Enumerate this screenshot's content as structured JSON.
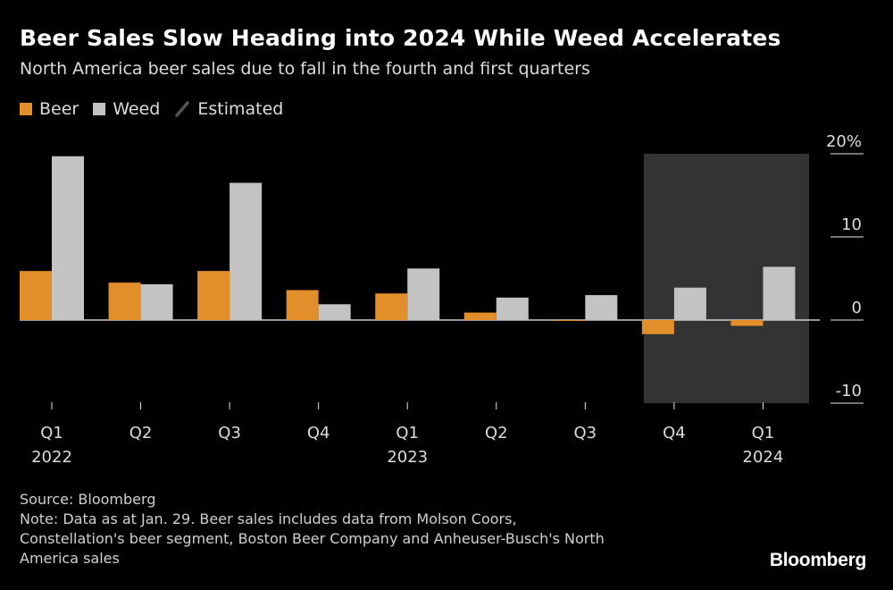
{
  "title": "Beer Sales Slow Heading into 2024 While Weed Accelerates",
  "subtitle": "North America beer sales due to fall in the fourth and first quarters",
  "legend": [
    {
      "label": "Beer",
      "color": "#e28e2b",
      "kind": "swatch"
    },
    {
      "label": "Weed",
      "color": "#c3c3c3",
      "kind": "swatch"
    },
    {
      "label": "Estimated",
      "color": "#555555",
      "kind": "slash"
    }
  ],
  "chart_data": {
    "type": "bar",
    "categories": [
      "Q1",
      "Q2",
      "Q3",
      "Q4",
      "Q1",
      "Q2",
      "Q3",
      "Q4",
      "Q1"
    ],
    "year_labels": [
      "2022",
      "",
      "",
      "",
      "2023",
      "",
      "",
      "",
      "2024"
    ],
    "series": [
      {
        "name": "Beer",
        "color": "#e28e2b",
        "values": [
          5.9,
          4.5,
          5.9,
          3.6,
          3.2,
          0.9,
          -0.1,
          -1.7,
          -0.7
        ]
      },
      {
        "name": "Weed",
        "color": "#c3c3c3",
        "values": [
          19.7,
          4.3,
          16.5,
          1.9,
          6.2,
          2.7,
          3.0,
          3.9,
          6.4
        ]
      }
    ],
    "yticks": [
      "20%",
      "10",
      "0",
      "-10"
    ],
    "ytick_values": [
      20,
      10,
      0,
      -10
    ],
    "ylim": [
      -10,
      20
    ],
    "estimated_categories": [
      7,
      8
    ],
    "estimated_color": "#333333"
  },
  "footer": {
    "source": "Source: Bloomberg",
    "note_lines": [
      "Note: Data as at Jan. 29. Beer sales includes data from Molson Coors,",
      "Constellation's beer segment, Boston Beer Company and Anheuser-Busch's North",
      "America sales"
    ]
  },
  "logo": "Bloomberg"
}
